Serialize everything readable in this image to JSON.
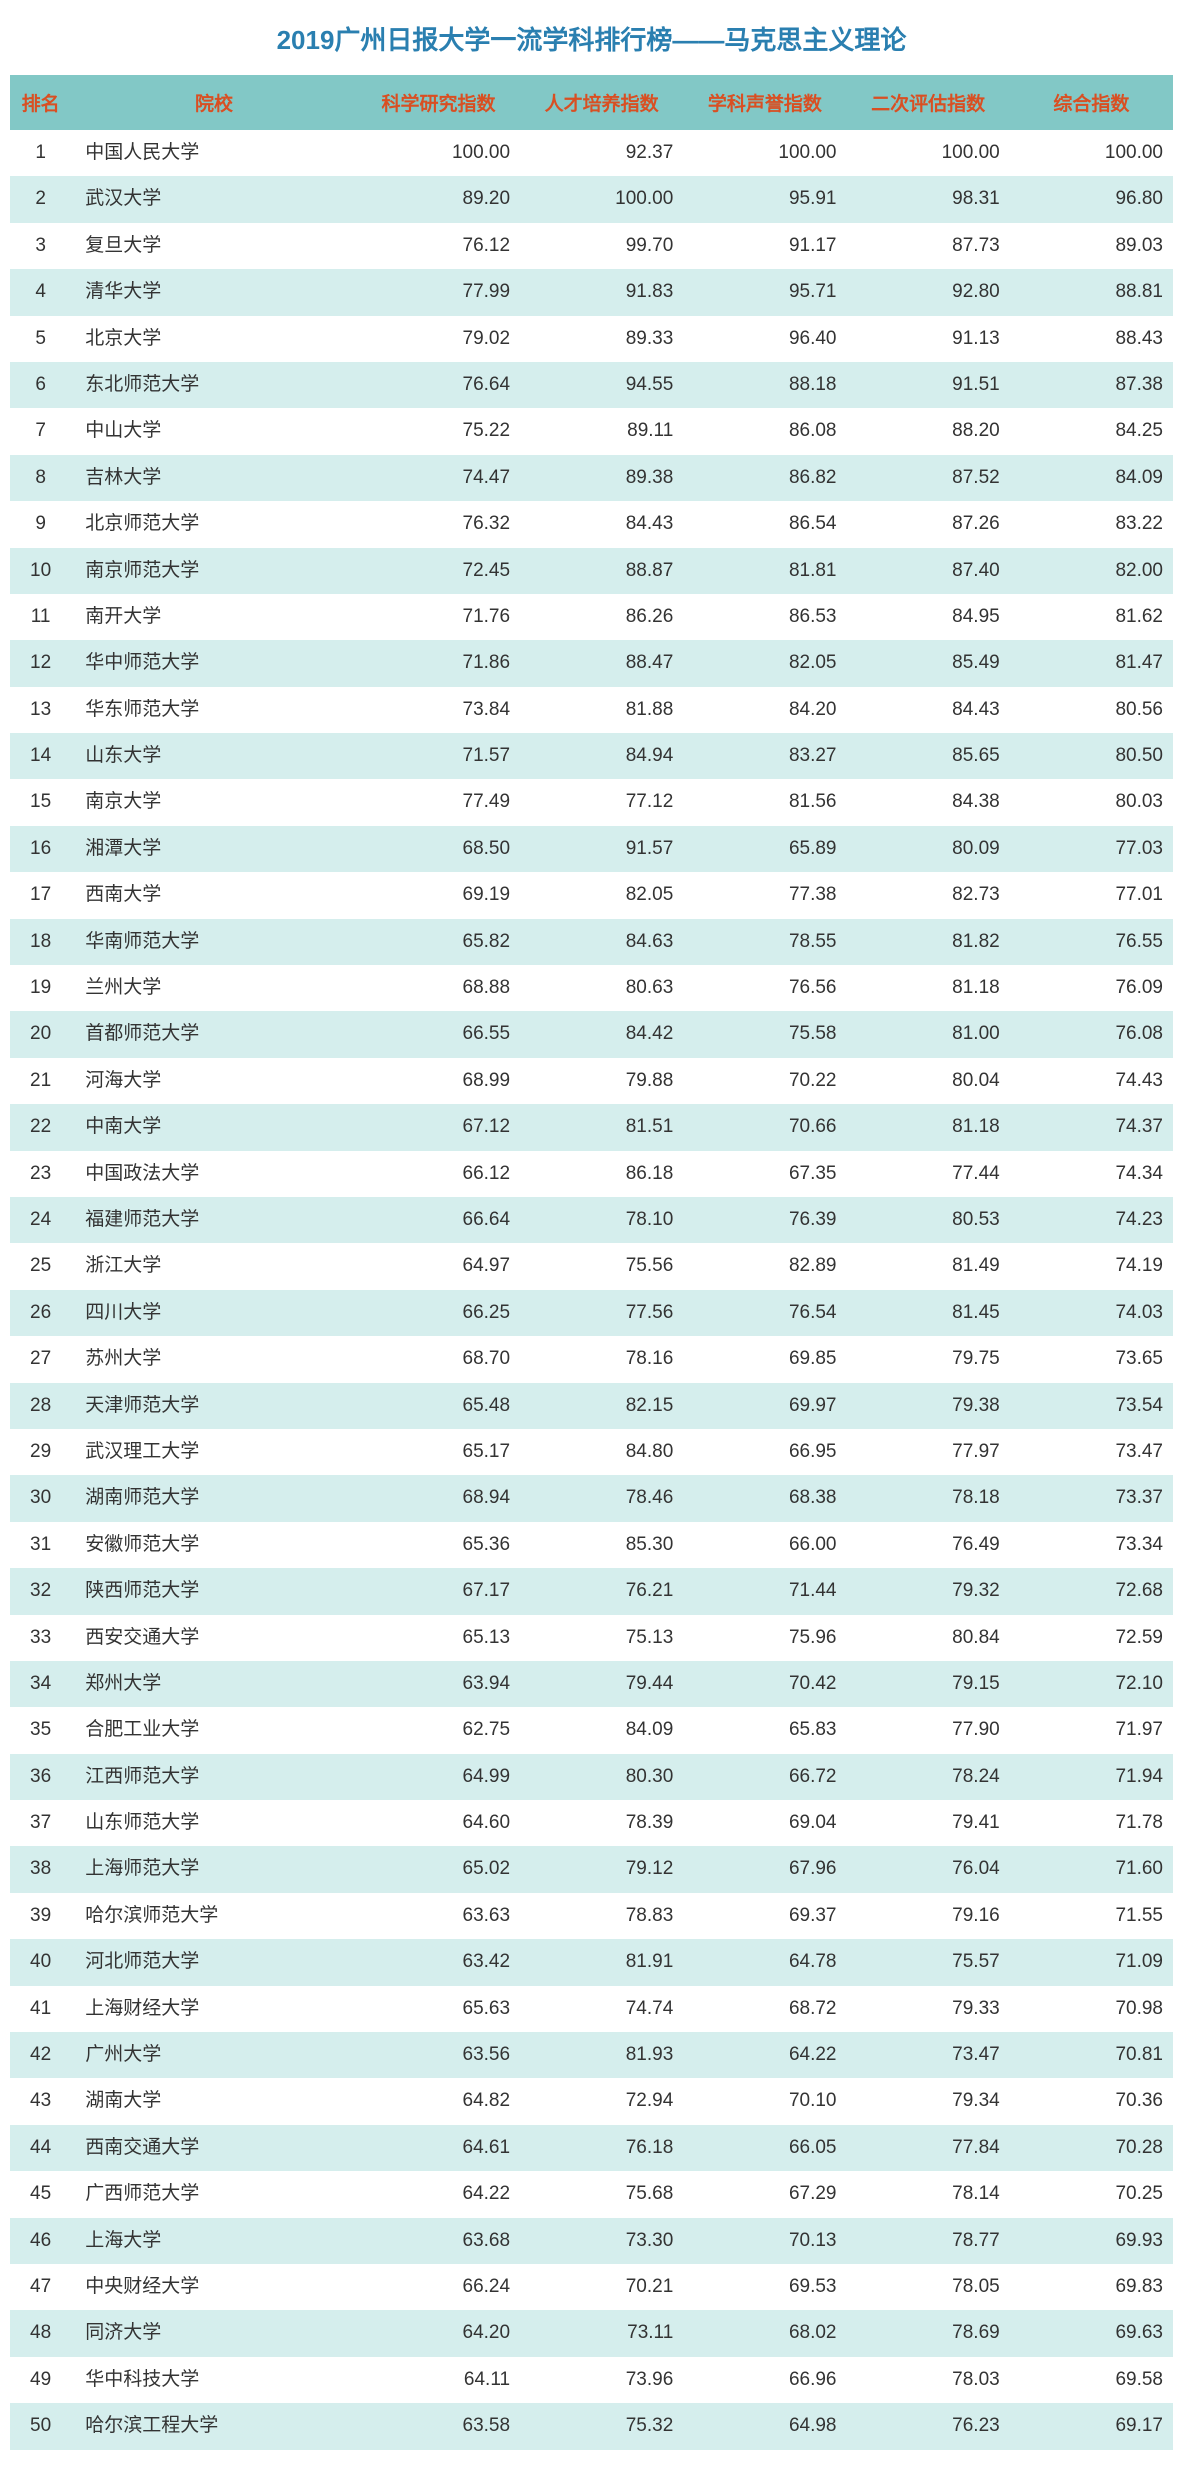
{
  "title": "2019广州日报大学一流学科排行榜——马克思主义理论",
  "columns": [
    "排名",
    "院校",
    "科学研究指数",
    "人才培养指数",
    "学科声誉指数",
    "二次评估指数",
    "综合指数"
  ],
  "rows": [
    [
      "1",
      "中国人民大学",
      "100.00",
      "92.37",
      "100.00",
      "100.00",
      "100.00"
    ],
    [
      "2",
      "武汉大学",
      "89.20",
      "100.00",
      "95.91",
      "98.31",
      "96.80"
    ],
    [
      "3",
      "复旦大学",
      "76.12",
      "99.70",
      "91.17",
      "87.73",
      "89.03"
    ],
    [
      "4",
      "清华大学",
      "77.99",
      "91.83",
      "95.71",
      "92.80",
      "88.81"
    ],
    [
      "5",
      "北京大学",
      "79.02",
      "89.33",
      "96.40",
      "91.13",
      "88.43"
    ],
    [
      "6",
      "东北师范大学",
      "76.64",
      "94.55",
      "88.18",
      "91.51",
      "87.38"
    ],
    [
      "7",
      "中山大学",
      "75.22",
      "89.11",
      "86.08",
      "88.20",
      "84.25"
    ],
    [
      "8",
      "吉林大学",
      "74.47",
      "89.38",
      "86.82",
      "87.52",
      "84.09"
    ],
    [
      "9",
      "北京师范大学",
      "76.32",
      "84.43",
      "86.54",
      "87.26",
      "83.22"
    ],
    [
      "10",
      "南京师范大学",
      "72.45",
      "88.87",
      "81.81",
      "87.40",
      "82.00"
    ],
    [
      "11",
      "南开大学",
      "71.76",
      "86.26",
      "86.53",
      "84.95",
      "81.62"
    ],
    [
      "12",
      "华中师范大学",
      "71.86",
      "88.47",
      "82.05",
      "85.49",
      "81.47"
    ],
    [
      "13",
      "华东师范大学",
      "73.84",
      "81.88",
      "84.20",
      "84.43",
      "80.56"
    ],
    [
      "14",
      "山东大学",
      "71.57",
      "84.94",
      "83.27",
      "85.65",
      "80.50"
    ],
    [
      "15",
      "南京大学",
      "77.49",
      "77.12",
      "81.56",
      "84.38",
      "80.03"
    ],
    [
      "16",
      "湘潭大学",
      "68.50",
      "91.57",
      "65.89",
      "80.09",
      "77.03"
    ],
    [
      "17",
      "西南大学",
      "69.19",
      "82.05",
      "77.38",
      "82.73",
      "77.01"
    ],
    [
      "18",
      "华南师范大学",
      "65.82",
      "84.63",
      "78.55",
      "81.82",
      "76.55"
    ],
    [
      "19",
      "兰州大学",
      "68.88",
      "80.63",
      "76.56",
      "81.18",
      "76.09"
    ],
    [
      "20",
      "首都师范大学",
      "66.55",
      "84.42",
      "75.58",
      "81.00",
      "76.08"
    ],
    [
      "21",
      "河海大学",
      "68.99",
      "79.88",
      "70.22",
      "80.04",
      "74.43"
    ],
    [
      "22",
      "中南大学",
      "67.12",
      "81.51",
      "70.66",
      "81.18",
      "74.37"
    ],
    [
      "23",
      "中国政法大学",
      "66.12",
      "86.18",
      "67.35",
      "77.44",
      "74.34"
    ],
    [
      "24",
      "福建师范大学",
      "66.64",
      "78.10",
      "76.39",
      "80.53",
      "74.23"
    ],
    [
      "25",
      "浙江大学",
      "64.97",
      "75.56",
      "82.89",
      "81.49",
      "74.19"
    ],
    [
      "26",
      "四川大学",
      "66.25",
      "77.56",
      "76.54",
      "81.45",
      "74.03"
    ],
    [
      "27",
      "苏州大学",
      "68.70",
      "78.16",
      "69.85",
      "79.75",
      "73.65"
    ],
    [
      "28",
      "天津师范大学",
      "65.48",
      "82.15",
      "69.97",
      "79.38",
      "73.54"
    ],
    [
      "29",
      "武汉理工大学",
      "65.17",
      "84.80",
      "66.95",
      "77.97",
      "73.47"
    ],
    [
      "30",
      "湖南师范大学",
      "68.94",
      "78.46",
      "68.38",
      "78.18",
      "73.37"
    ],
    [
      "31",
      "安徽师范大学",
      "65.36",
      "85.30",
      "66.00",
      "76.49",
      "73.34"
    ],
    [
      "32",
      "陕西师范大学",
      "67.17",
      "76.21",
      "71.44",
      "79.32",
      "72.68"
    ],
    [
      "33",
      "西安交通大学",
      "65.13",
      "75.13",
      "75.96",
      "80.84",
      "72.59"
    ],
    [
      "34",
      "郑州大学",
      "63.94",
      "79.44",
      "70.42",
      "79.15",
      "72.10"
    ],
    [
      "35",
      "合肥工业大学",
      "62.75",
      "84.09",
      "65.83",
      "77.90",
      "71.97"
    ],
    [
      "36",
      "江西师范大学",
      "64.99",
      "80.30",
      "66.72",
      "78.24",
      "71.94"
    ],
    [
      "37",
      "山东师范大学",
      "64.60",
      "78.39",
      "69.04",
      "79.41",
      "71.78"
    ],
    [
      "38",
      "上海师范大学",
      "65.02",
      "79.12",
      "67.96",
      "76.04",
      "71.60"
    ],
    [
      "39",
      "哈尔滨师范大学",
      "63.63",
      "78.83",
      "69.37",
      "79.16",
      "71.55"
    ],
    [
      "40",
      "河北师范大学",
      "63.42",
      "81.91",
      "64.78",
      "75.57",
      "71.09"
    ],
    [
      "41",
      "上海财经大学",
      "65.63",
      "74.74",
      "68.72",
      "79.33",
      "70.98"
    ],
    [
      "42",
      "广州大学",
      "63.56",
      "81.93",
      "64.22",
      "73.47",
      "70.81"
    ],
    [
      "43",
      "湖南大学",
      "64.82",
      "72.94",
      "70.10",
      "79.34",
      "70.36"
    ],
    [
      "44",
      "西南交通大学",
      "64.61",
      "76.18",
      "66.05",
      "77.84",
      "70.28"
    ],
    [
      "45",
      "广西师范大学",
      "64.22",
      "75.68",
      "67.29",
      "78.14",
      "70.25"
    ],
    [
      "46",
      "上海大学",
      "63.68",
      "73.30",
      "70.13",
      "78.77",
      "69.93"
    ],
    [
      "47",
      "中央财经大学",
      "66.24",
      "70.21",
      "69.53",
      "78.05",
      "69.83"
    ],
    [
      "48",
      "同济大学",
      "64.20",
      "73.11",
      "68.02",
      "78.69",
      "69.63"
    ],
    [
      "49",
      "华中科技大学",
      "64.11",
      "73.96",
      "66.96",
      "78.03",
      "69.58"
    ],
    [
      "50",
      "哈尔滨工程大学",
      "63.58",
      "75.32",
      "64.98",
      "76.23",
      "69.17"
    ]
  ],
  "colors": {
    "title": "#2a7fb0",
    "header_bg": "#82c8c6",
    "header_text": "#d94f22",
    "row_alt": "#d5eeed",
    "row_base": "#ffffff",
    "cell_text": "#333333"
  }
}
